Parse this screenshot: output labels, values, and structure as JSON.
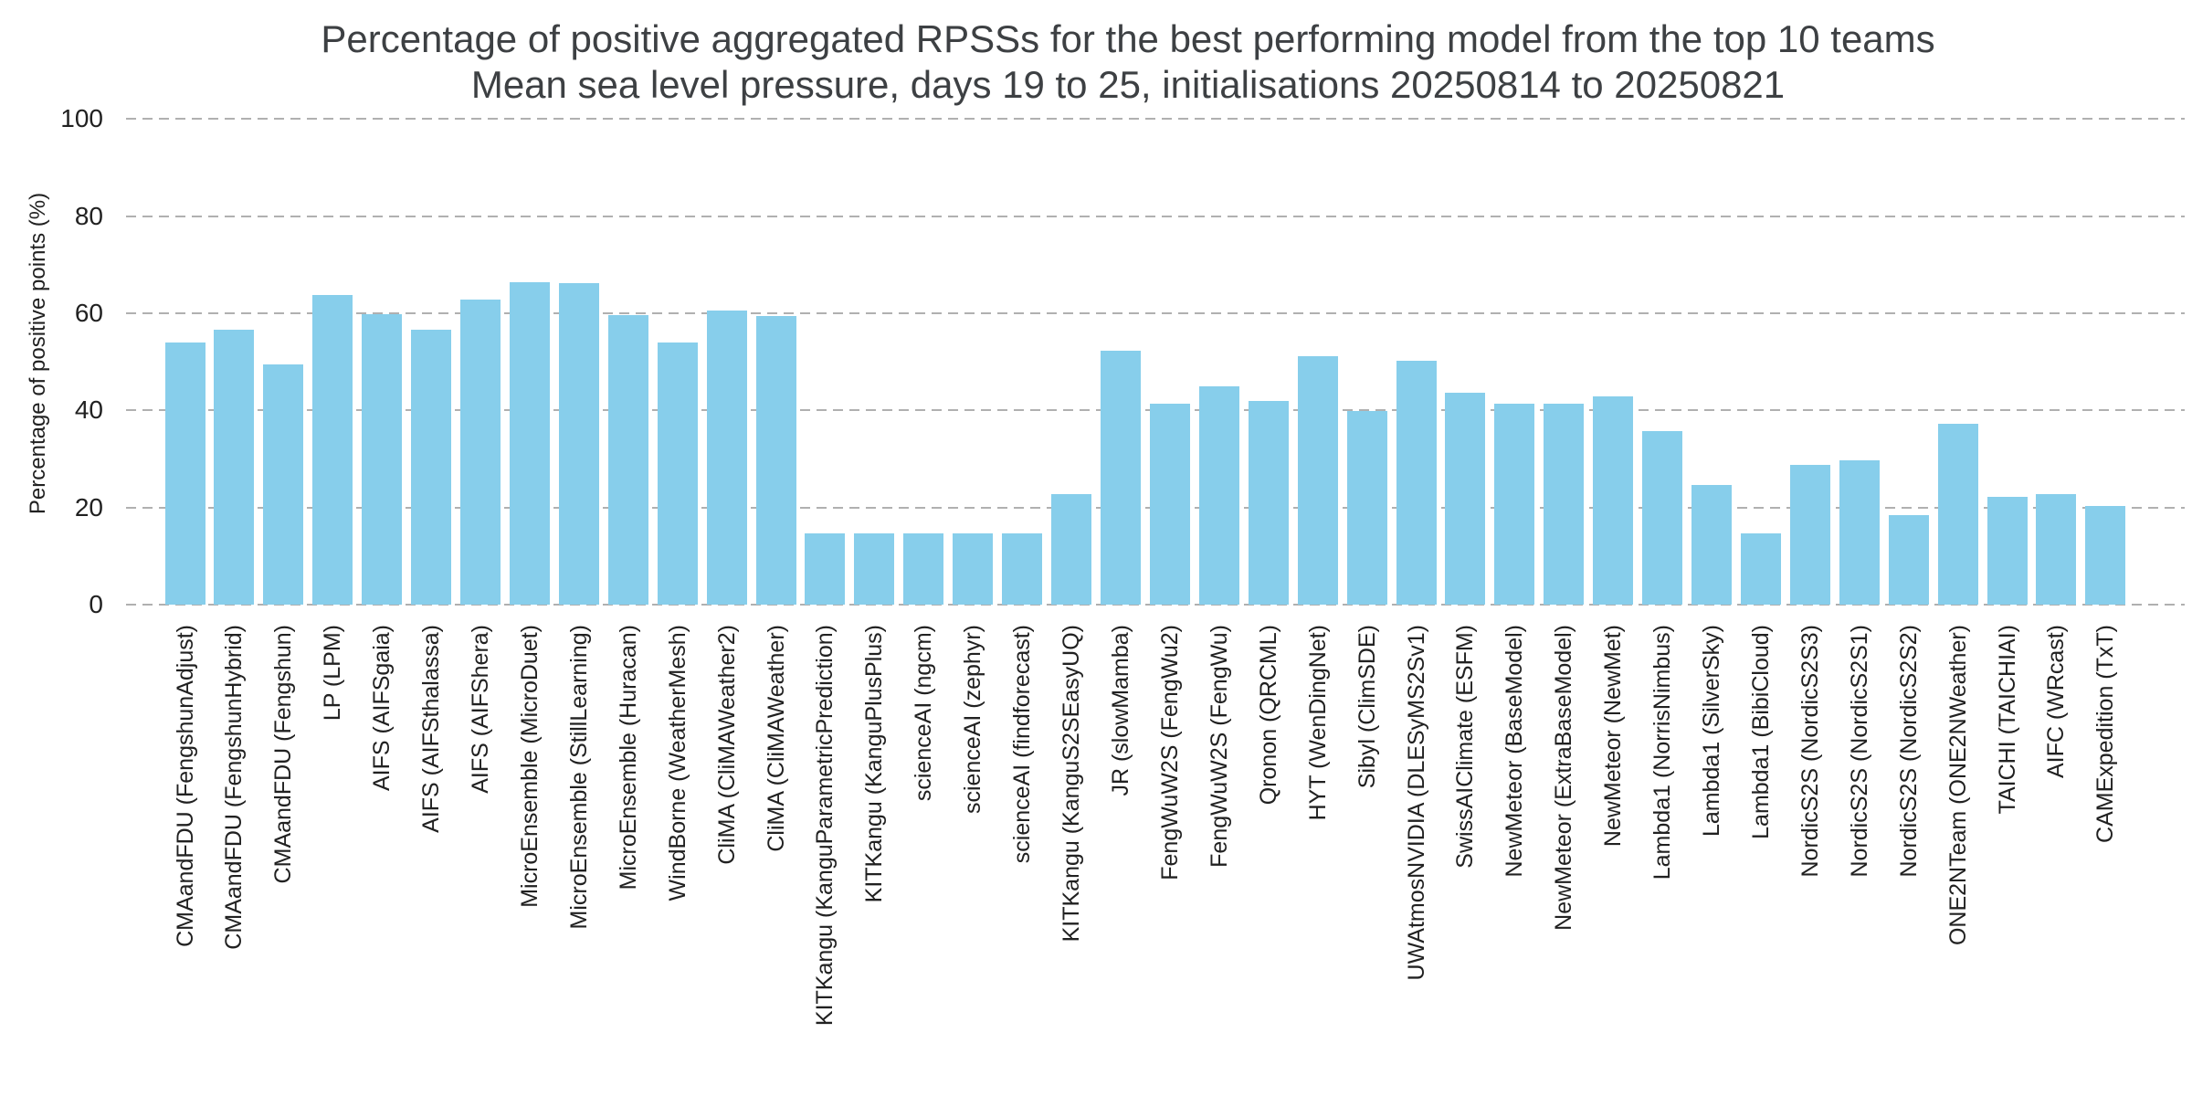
{
  "chart_data": {
    "type": "bar",
    "title": "Percentage of positive aggregated RPSSs for the best performing model from the top 10 teams",
    "subtitle": "Mean sea level pressure, days 19 to 25, initialisations 20250814 to 20250821",
    "ylabel": "Percentage of positive points (%)",
    "xlabel": "",
    "ylim": [
      0,
      100
    ],
    "yticks": [
      0,
      20,
      40,
      60,
      80,
      100
    ],
    "grid": "horizontal dashed gridlines, no axis spines, no legend",
    "bar_color": "#87CEEB",
    "gridline_color": "#b0b0b0",
    "title_color": "#3d4043",
    "tick_color": "#212121",
    "categories": [
      "CMAandFDU (FengshunAdjust)",
      "CMAandFDU (FengshunHybrid)",
      "CMAandFDU (Fengshun)",
      "LP (LPM)",
      "AIFS (AIFSgaia)",
      "AIFS (AIFSthalassa)",
      "AIFS (AIFShera)",
      "MicroEnsemble (MicroDuet)",
      "MicroEnsemble (StillLearning)",
      "MicroEnsemble (Huracan)",
      "WindBorne (WeatherMesh)",
      "CliMA (CliMAWeather2)",
      "CliMA (CliMAWeather)",
      "KITKangu (KanguParametricPrediction)",
      "KITKangu (KanguPlusPlus)",
      "scienceAI (ngcm)",
      "scienceAI (zephyr)",
      "scienceAI (findforecast)",
      "KITKangu (KanguS2SEasyUQ)",
      "JR (slowMamba)",
      "FengWuW2S (FengWu2)",
      "FengWuW2S (FengWu)",
      "Qronon (QRCML)",
      "HYT (WenDingNet)",
      "Sibyl (ClimSDE)",
      "UWAtmosNVIDIA (DLESyMS2Sv1)",
      "SwissAIClimate (ESFM)",
      "NewMeteor (BaseModel)",
      "NewMeteor (ExtraBaseModel)",
      "NewMeteor (NewMet)",
      "Lambda1 (NorrisNimbus)",
      "Lambda1 (SilverSky)",
      "Lambda1 (BibiCloud)",
      "NordicS2S (NordicS2S3)",
      "NordicS2S (NordicS2S1)",
      "NordicS2S (NordicS2S2)",
      "ONE2NTeam (ONE2NWeather)",
      "TAICHI (TAICHIAI)",
      "AIFC (WRcast)",
      "CAMExpedition (TxT)"
    ],
    "values": [
      53.9,
      56.7,
      49.5,
      63.8,
      59.9,
      56.7,
      62.8,
      66.4,
      66.2,
      59.6,
      53.9,
      60.5,
      59.5,
      14.6,
      14.6,
      14.6,
      14.6,
      14.6,
      22.7,
      52.3,
      41.4,
      44.9,
      42.0,
      51.1,
      39.8,
      50.3,
      43.7,
      41.3,
      41.3,
      42.9,
      35.8,
      24.6,
      14.6,
      28.8,
      29.7,
      18.5,
      37.3,
      22.2,
      22.8,
      20.4
    ]
  }
}
